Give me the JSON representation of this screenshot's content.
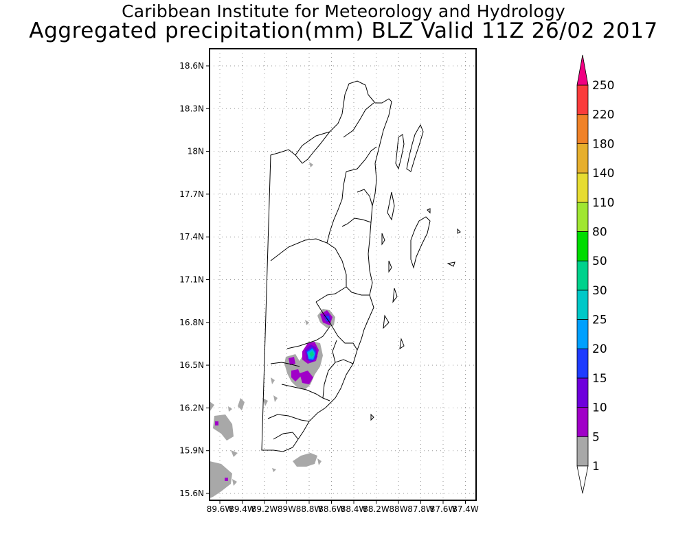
{
  "title": {
    "line1": "Caribbean Institute for Meteorology and Hydrology",
    "line2": "Aggregated precipitation(mm) BLZ Valid 11Z 26/02 2017"
  },
  "map": {
    "lat_labels": [
      "18.6N",
      "18.3N",
      "18N",
      "17.7N",
      "17.4N",
      "17.1N",
      "16.8N",
      "16.5N",
      "16.2N",
      "15.9N",
      "15.6N"
    ],
    "lon_labels": [
      "89.6W",
      "89.4W",
      "89.2W",
      "89W",
      "88.8W",
      "88.6W",
      "88.4W",
      "88.2W",
      "88W",
      "87.8W",
      "87.6W",
      "87.4W"
    ],
    "grid": "dotted"
  },
  "colorbar": {
    "levels": [
      "1",
      "5",
      "10",
      "15",
      "20",
      "25",
      "30",
      "50",
      "80",
      "110",
      "140",
      "180",
      "220",
      "250"
    ],
    "colors": [
      "#a8a8a8",
      "#a000c8",
      "#6e00dc",
      "#1e3cff",
      "#00a0ff",
      "#00c8c8",
      "#00d28c",
      "#00dc00",
      "#a0e632",
      "#e6dc32",
      "#e6af2d",
      "#f08228",
      "#fa3c3c",
      "#f00082"
    ]
  }
}
